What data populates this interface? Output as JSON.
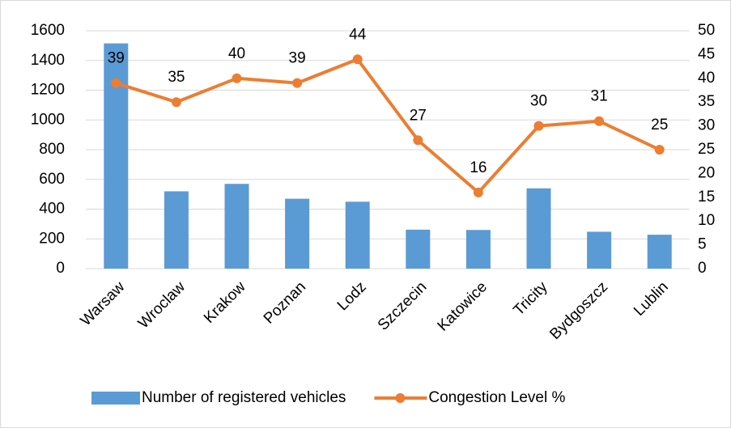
{
  "chart_data": {
    "type": "bar-line",
    "categories": [
      "Warsaw",
      "Wroclaw",
      "Krakow",
      "Poznan",
      "Lodz",
      "Szczecin",
      "Katowice",
      "Tricity",
      "Bydgoszcz",
      "Lublin"
    ],
    "series": [
      {
        "name": "Number of registered vehicles",
        "type": "bar",
        "color": "#5b9bd5",
        "values": [
          1515,
          520,
          570,
          470,
          450,
          262,
          260,
          540,
          248,
          228
        ]
      },
      {
        "name": "Congestion Level %",
        "type": "line",
        "axis": "y2",
        "color": "#ed7d31",
        "values": [
          39,
          35,
          40,
          39,
          44,
          27,
          16,
          30,
          31,
          25
        ]
      }
    ],
    "ylim": [
      0,
      1600
    ],
    "yticks": [
      0,
      200,
      400,
      600,
      800,
      1000,
      1200,
      1400,
      1600
    ],
    "y2lim": [
      0,
      50
    ],
    "y2ticks": [
      0,
      5,
      10,
      15,
      20,
      25,
      30,
      35,
      40,
      45,
      50
    ],
    "grid": true,
    "legend": "bottom"
  }
}
